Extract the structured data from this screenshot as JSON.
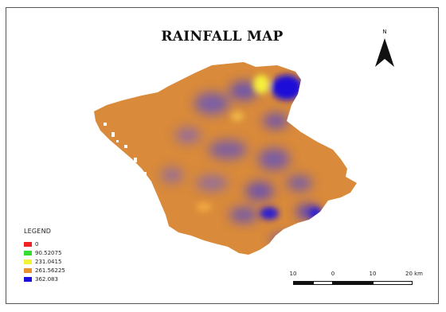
{
  "title": "RAINFALL MAP",
  "north_label": "N",
  "north_icon": "north-arrow-icon",
  "legend": {
    "title": "LEGEND",
    "items": [
      {
        "label": "0",
        "color": "#ee2222"
      },
      {
        "label": "90.52075",
        "color": "#33dd33"
      },
      {
        "label": "231.0415",
        "color": "#f5f03a"
      },
      {
        "label": "261.56225",
        "color": "#e8922e"
      },
      {
        "label": "362.083",
        "color": "#1a10d8"
      }
    ]
  },
  "scale": {
    "labels": [
      "10",
      "0",
      "10",
      "20 km"
    ]
  }
}
